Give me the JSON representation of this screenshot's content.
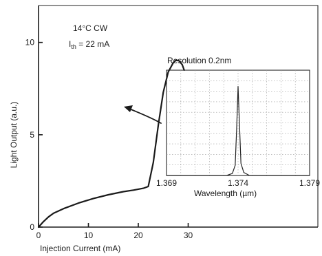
{
  "chart_data": [
    {
      "type": "line",
      "xlabel": "Injection Current (mA)",
      "ylabel": "Light Output (a.u.)",
      "xlim": [
        0,
        56
      ],
      "ylim": [
        0,
        12
      ],
      "xticks": [
        "0",
        "10",
        "20",
        "30"
      ],
      "yticks": [
        "0",
        "5",
        "10"
      ],
      "annotations": [
        "14°C  CW",
        "I",
        "th",
        " = 22 mA"
      ],
      "grid": false,
      "series": [
        {
          "x": [
            0,
            1,
            2,
            3,
            5,
            8,
            11,
            14,
            17,
            19,
            21,
            22,
            23,
            24,
            25,
            26,
            27,
            27.6,
            28.2,
            28.8,
            29.2
          ],
          "y": [
            0,
            0.3,
            0.55,
            0.75,
            1.0,
            1.3,
            1.55,
            1.75,
            1.92,
            2.0,
            2.1,
            2.2,
            3.5,
            5.5,
            7.3,
            8.4,
            8.9,
            9.05,
            9.0,
            8.8,
            8.5
          ]
        }
      ]
    },
    {
      "type": "line",
      "title": "Resolution 0.2nm",
      "xlabel": "Wavelength (µm)",
      "xlim": [
        1.369,
        1.379
      ],
      "ylim": [
        0,
        1
      ],
      "xticks": [
        "1.369",
        "1.374",
        "1.379"
      ],
      "grid": true,
      "series": [
        {
          "x": [
            1.369,
            1.372,
            1.3732,
            1.3736,
            1.3738,
            1.3739,
            1.374,
            1.3741,
            1.3742,
            1.3744,
            1.3748,
            1.376,
            1.379
          ],
          "y": [
            0,
            0,
            0.0,
            0.02,
            0.1,
            0.45,
            0.88,
            0.5,
            0.12,
            0.03,
            0.0,
            0,
            0
          ]
        }
      ]
    }
  ]
}
